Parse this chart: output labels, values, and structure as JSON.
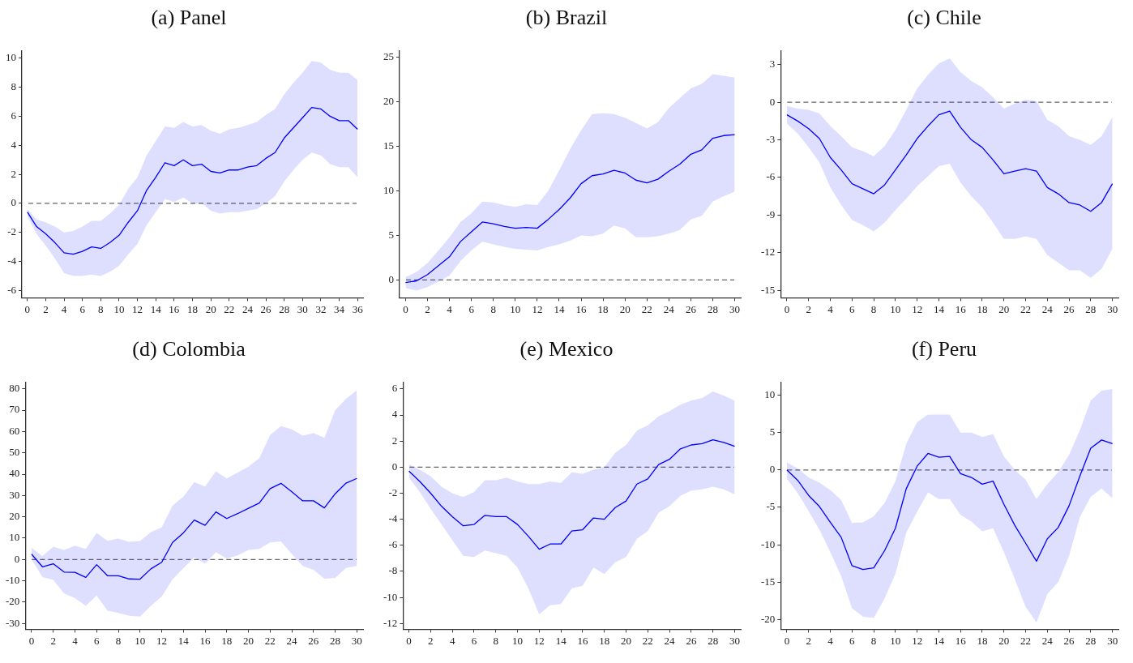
{
  "chart_data": [
    {
      "type": "line",
      "title": "(a) Panel",
      "x": [
        0,
        1,
        2,
        3,
        4,
        5,
        6,
        7,
        8,
        9,
        10,
        11,
        12,
        13,
        14,
        15,
        16,
        17,
        18,
        19,
        20,
        21,
        22,
        23,
        24,
        25,
        26,
        27,
        28,
        29,
        30,
        31,
        32,
        33,
        34,
        35,
        36
      ],
      "marker": "none",
      "line_style": "solid",
      "grid": false,
      "series": [
        {
          "color": "#0000ff",
          "values": [
            -0.6,
            -1.6,
            -2.1,
            -2.7,
            -3.4,
            -3.5,
            -3.3,
            -3.0,
            -3.1,
            -2.7,
            -2.2,
            -1.3,
            -0.5,
            0.9,
            1.8,
            2.8,
            2.6,
            3.0,
            2.6,
            2.7,
            2.2,
            2.1,
            2.3,
            2.3,
            2.5,
            2.6,
            3.1,
            3.5,
            4.5,
            5.2,
            5.9,
            6.6,
            6.5,
            6.0,
            5.7,
            5.7,
            5.1
          ],
          "upper": [
            -0.4,
            -1.1,
            -1.3,
            -1.6,
            -2.0,
            -1.9,
            -1.6,
            -1.2,
            -1.2,
            -0.7,
            -0.1,
            1.0,
            1.8,
            3.3,
            4.3,
            5.3,
            5.2,
            5.6,
            5.3,
            5.4,
            5.0,
            4.8,
            5.1,
            5.2,
            5.4,
            5.6,
            6.1,
            6.5,
            7.5,
            8.3,
            9.0,
            9.8,
            9.7,
            9.2,
            9.0,
            9.0,
            8.5
          ],
          "lower": [
            -0.9,
            -2.1,
            -2.9,
            -3.8,
            -4.8,
            -5.0,
            -5.0,
            -4.9,
            -5.0,
            -4.7,
            -4.3,
            -3.5,
            -2.8,
            -1.5,
            -0.6,
            0.3,
            0.1,
            0.4,
            0.0,
            0.0,
            -0.5,
            -0.7,
            -0.6,
            -0.6,
            -0.5,
            -0.4,
            0.0,
            0.5,
            1.5,
            2.3,
            3.0,
            3.5,
            3.3,
            2.7,
            2.5,
            2.5,
            1.8
          ]
        }
      ],
      "xlim": [
        -0.6,
        36.6
      ],
      "ylim": [
        -6.5,
        10.5
      ],
      "xticks": [
        0,
        2,
        4,
        6,
        8,
        10,
        12,
        14,
        16,
        18,
        20,
        22,
        24,
        26,
        28,
        30,
        32,
        34,
        36
      ],
      "yticks": [
        -6,
        -4,
        -2,
        0,
        2,
        4,
        6,
        8,
        10
      ],
      "ref_lines": [
        {
          "axis": "y",
          "value": 0,
          "color": "#666666",
          "line_style": "dashed"
        }
      ]
    },
    {
      "type": "line",
      "title": "(b) Brazil",
      "x": [
        0,
        1,
        2,
        3,
        4,
        5,
        6,
        7,
        8,
        9,
        10,
        11,
        12,
        13,
        14,
        15,
        16,
        17,
        18,
        19,
        20,
        21,
        22,
        23,
        24,
        25,
        26,
        27,
        28,
        29,
        30
      ],
      "marker": "none",
      "line_style": "solid",
      "grid": false,
      "series": [
        {
          "color": "#0000ff",
          "values": [
            -0.3,
            -0.1,
            0.6,
            1.6,
            2.6,
            4.3,
            5.4,
            6.5,
            6.3,
            6.0,
            5.8,
            5.9,
            5.8,
            6.8,
            7.9,
            9.2,
            10.8,
            11.7,
            11.9,
            12.3,
            12.0,
            11.2,
            10.9,
            11.3,
            12.2,
            13.0,
            14.1,
            14.6,
            15.9,
            16.2,
            16.3
          ],
          "upper": [
            0.3,
            0.9,
            1.9,
            3.3,
            4.8,
            6.5,
            7.5,
            8.8,
            8.7,
            8.4,
            8.2,
            8.5,
            8.4,
            10.0,
            12.3,
            14.7,
            16.8,
            18.6,
            18.7,
            18.6,
            18.2,
            17.6,
            17.0,
            17.7,
            19.3,
            20.4,
            21.5,
            22.0,
            23.1,
            22.9,
            22.7
          ],
          "lower": [
            -0.9,
            -1.2,
            -0.8,
            -0.2,
            0.5,
            2.1,
            3.3,
            4.3,
            4.0,
            3.7,
            3.5,
            3.4,
            3.3,
            3.7,
            4.0,
            4.4,
            5.0,
            4.9,
            5.2,
            6.1,
            5.8,
            4.8,
            4.8,
            4.9,
            5.2,
            5.6,
            6.8,
            7.2,
            8.8,
            9.4,
            9.9
          ]
        }
      ],
      "xlim": [
        -0.55,
        30.55
      ],
      "ylim": [
        -2,
        25.7
      ],
      "xticks": [
        0,
        2,
        4,
        6,
        8,
        10,
        12,
        14,
        16,
        18,
        20,
        22,
        24,
        26,
        28,
        30
      ],
      "yticks": [
        0,
        5,
        10,
        15,
        20,
        25
      ],
      "ref_lines": [
        {
          "axis": "y",
          "value": 0,
          "color": "#666666",
          "line_style": "dashed"
        }
      ]
    },
    {
      "type": "line",
      "title": "(c) Chile",
      "x": [
        0,
        1,
        2,
        3,
        4,
        5,
        6,
        7,
        8,
        9,
        10,
        11,
        12,
        13,
        14,
        15,
        16,
        17,
        18,
        19,
        20,
        21,
        22,
        23,
        24,
        25,
        26,
        27,
        28,
        29,
        30
      ],
      "marker": "none",
      "line_style": "solid",
      "grid": false,
      "series": [
        {
          "color": "#0000ff",
          "values": [
            -1.0,
            -1.5,
            -2.1,
            -2.9,
            -4.4,
            -5.4,
            -6.5,
            -6.9,
            -7.3,
            -6.6,
            -5.4,
            -4.2,
            -2.9,
            -1.9,
            -1.0,
            -0.7,
            -2.0,
            -3.0,
            -3.6,
            -4.6,
            -5.7,
            -5.5,
            -5.3,
            -5.5,
            -6.8,
            -7.3,
            -8.0,
            -8.2,
            -8.7,
            -8.0,
            -6.5
          ],
          "upper": [
            -0.3,
            -0.5,
            -0.6,
            -0.9,
            -1.9,
            -2.7,
            -3.6,
            -3.9,
            -4.3,
            -3.5,
            -2.2,
            -0.6,
            1.1,
            2.2,
            3.1,
            3.5,
            2.4,
            1.7,
            1.2,
            0.4,
            -0.5,
            -0.1,
            0.2,
            0.1,
            -1.4,
            -1.9,
            -2.7,
            -3.0,
            -3.4,
            -2.7,
            -1.2
          ],
          "lower": [
            -1.7,
            -2.5,
            -3.6,
            -4.8,
            -6.8,
            -8.2,
            -9.4,
            -9.8,
            -10.3,
            -9.6,
            -8.6,
            -7.7,
            -6.7,
            -5.9,
            -5.1,
            -4.9,
            -6.4,
            -7.5,
            -8.4,
            -9.6,
            -10.9,
            -10.9,
            -10.7,
            -10.9,
            -12.2,
            -12.8,
            -13.4,
            -13.4,
            -14.0,
            -13.3,
            -11.7
          ]
        }
      ],
      "xlim": [
        -0.57,
        30.55
      ],
      "ylim": [
        -15.6,
        4.1
      ],
      "xticks": [
        0,
        2,
        4,
        6,
        8,
        10,
        12,
        14,
        16,
        18,
        20,
        22,
        24,
        26,
        28,
        30
      ],
      "yticks": [
        -15,
        -12,
        -9,
        -6,
        -3,
        0,
        3
      ],
      "ref_lines": [
        {
          "axis": "y",
          "value": 0,
          "color": "#666666",
          "line_style": "dashed"
        }
      ]
    },
    {
      "type": "line",
      "title": "(d) Colombia",
      "x": [
        0,
        1,
        2,
        3,
        4,
        5,
        6,
        7,
        8,
        9,
        10,
        11,
        12,
        13,
        14,
        15,
        16,
        17,
        18,
        19,
        20,
        21,
        22,
        23,
        24,
        25,
        26,
        27,
        28,
        29,
        30
      ],
      "marker": "none",
      "line_style": "solid",
      "grid": false,
      "series": [
        {
          "color": "#0000ff",
          "values": [
            2.5,
            -3.4,
            -2.0,
            -5.9,
            -6.0,
            -8.4,
            -2.4,
            -7.6,
            -7.6,
            -9.1,
            -9.2,
            -4.4,
            -1.3,
            8.0,
            12.5,
            18.5,
            16.0,
            22.3,
            19.2,
            21.5,
            24.0,
            26.5,
            33.2,
            35.7,
            31.7,
            27.5,
            27.5,
            24.2,
            30.8,
            35.8,
            38.0
          ],
          "upper": [
            5.5,
            1.5,
            6.0,
            4.5,
            6.5,
            5.0,
            12.5,
            8.8,
            9.8,
            8.3,
            8.7,
            12.8,
            15.0,
            25.3,
            29.5,
            36.3,
            34.2,
            41.3,
            38.0,
            40.8,
            43.5,
            47.5,
            58.3,
            62.5,
            61.0,
            58.0,
            59.3,
            57.0,
            70.0,
            75.3,
            79.3
          ],
          "lower": [
            0.0,
            -8.2,
            -9.6,
            -15.9,
            -18.1,
            -21.7,
            -16.9,
            -24.0,
            -25.0,
            -26.4,
            -26.8,
            -21.7,
            -17.4,
            -9.3,
            -4.1,
            1.0,
            -2.0,
            3.3,
            0.5,
            1.9,
            4.5,
            5.0,
            8.0,
            8.5,
            2.5,
            -3.0,
            -4.8,
            -9.0,
            -8.6,
            -4.0,
            -3.0
          ]
        }
      ],
      "xlim": [
        -0.57,
        30.57
      ],
      "ylim": [
        -32.7,
        83
      ],
      "xticks": [
        0,
        2,
        4,
        6,
        8,
        10,
        12,
        14,
        16,
        18,
        20,
        22,
        24,
        26,
        28,
        30
      ],
      "yticks": [
        -30,
        -20,
        -10,
        0,
        10,
        20,
        30,
        40,
        50,
        60,
        70,
        80
      ],
      "ref_lines": [
        {
          "axis": "y",
          "value": 0,
          "color": "#666666",
          "line_style": "dashed"
        }
      ]
    },
    {
      "type": "line",
      "title": "(e) Mexico",
      "x": [
        0,
        1,
        2,
        3,
        4,
        5,
        6,
        7,
        8,
        9,
        10,
        11,
        12,
        13,
        14,
        15,
        16,
        17,
        18,
        19,
        20,
        21,
        22,
        23,
        24,
        25,
        26,
        27,
        28,
        29,
        30
      ],
      "marker": "none",
      "line_style": "solid",
      "grid": false,
      "series": [
        {
          "color": "#0000ff",
          "values": [
            -0.3,
            -1.1,
            -2.0,
            -3.0,
            -3.8,
            -4.5,
            -4.4,
            -3.7,
            -3.8,
            -3.8,
            -4.4,
            -5.3,
            -6.3,
            -5.9,
            -5.9,
            -4.9,
            -4.8,
            -3.9,
            -4.0,
            -3.1,
            -2.6,
            -1.3,
            -0.9,
            0.2,
            0.6,
            1.4,
            1.7,
            1.8,
            2.1,
            1.9,
            1.6
          ],
          "upper": [
            0.2,
            -0.2,
            -0.7,
            -1.5,
            -2.0,
            -2.3,
            -1.9,
            -1.0,
            -1.0,
            -0.8,
            -1.1,
            -1.3,
            -1.3,
            -1.1,
            -1.2,
            -0.4,
            -0.5,
            -0.2,
            0.0,
            1.1,
            1.7,
            2.8,
            3.2,
            3.9,
            4.3,
            4.8,
            5.1,
            5.3,
            5.8,
            5.5,
            5.1
          ],
          "lower": [
            -0.8,
            -1.9,
            -3.2,
            -4.4,
            -5.6,
            -6.8,
            -6.9,
            -6.4,
            -6.6,
            -6.8,
            -7.7,
            -9.3,
            -11.3,
            -10.6,
            -10.5,
            -9.3,
            -9.1,
            -7.7,
            -8.2,
            -7.3,
            -6.9,
            -5.5,
            -4.9,
            -3.5,
            -3.0,
            -2.2,
            -1.8,
            -1.7,
            -1.5,
            -1.7,
            -2.1
          ]
        }
      ],
      "xlim": [
        -0.54,
        30.56
      ],
      "ylim": [
        -12.44,
        6.5
      ],
      "xticks": [
        0,
        2,
        4,
        6,
        8,
        10,
        12,
        14,
        16,
        18,
        20,
        22,
        24,
        26,
        28,
        30
      ],
      "yticks": [
        -12,
        -10,
        -8,
        -6,
        -4,
        -2,
        0,
        2,
        4,
        6
      ],
      "ref_lines": [
        {
          "axis": "y",
          "value": 0,
          "color": "#666666",
          "line_style": "dashed"
        }
      ]
    },
    {
      "type": "line",
      "title": "(f) Peru",
      "x": [
        0,
        1,
        2,
        3,
        4,
        5,
        6,
        7,
        8,
        9,
        10,
        11,
        12,
        13,
        14,
        15,
        16,
        17,
        18,
        19,
        20,
        21,
        22,
        23,
        24,
        25,
        26,
        27,
        28,
        29,
        30
      ],
      "marker": "none",
      "line_style": "solid",
      "grid": false,
      "series": [
        {
          "color": "#0000ff",
          "values": [
            0.0,
            -1.4,
            -3.4,
            -4.9,
            -7.0,
            -9.0,
            -12.8,
            -13.3,
            -13.1,
            -10.8,
            -7.8,
            -2.5,
            0.5,
            2.2,
            1.7,
            1.8,
            -0.5,
            -1.0,
            -1.9,
            -1.5,
            -4.6,
            -7.4,
            -9.8,
            -12.2,
            -9.2,
            -7.7,
            -4.8,
            -0.8,
            2.9,
            4.0,
            3.5
          ],
          "upper": [
            1.0,
            0.2,
            -1.0,
            -1.7,
            -2.7,
            -4.0,
            -7.1,
            -7.0,
            -6.2,
            -4.4,
            -1.5,
            3.5,
            6.4,
            7.4,
            7.4,
            7.4,
            5.0,
            5.0,
            4.4,
            4.8,
            1.8,
            0.0,
            -1.3,
            -3.9,
            -1.9,
            -0.3,
            2.0,
            5.3,
            9.3,
            10.6,
            10.8
          ],
          "lower": [
            -1.2,
            -3.1,
            -5.5,
            -8.0,
            -11.0,
            -14.2,
            -18.5,
            -19.6,
            -19.8,
            -17.2,
            -13.9,
            -8.4,
            -5.6,
            -3.0,
            -3.9,
            -3.9,
            -6.0,
            -6.9,
            -8.2,
            -7.8,
            -11.0,
            -14.6,
            -18.3,
            -20.4,
            -16.6,
            -15.0,
            -11.5,
            -6.3,
            -3.6,
            -2.5,
            -3.8
          ]
        }
      ],
      "xlim": [
        -0.57,
        30.55
      ],
      "ylim": [
        -21.3,
        11.7
      ],
      "xticks": [
        0,
        2,
        4,
        6,
        8,
        10,
        12,
        14,
        16,
        18,
        20,
        22,
        24,
        26,
        28,
        30
      ],
      "yticks": [
        -20,
        -15,
        -10,
        -5,
        0,
        5,
        10
      ],
      "ref_lines": [
        {
          "axis": "y",
          "value": 0,
          "color": "#666666",
          "line_style": "dashed"
        }
      ]
    }
  ]
}
